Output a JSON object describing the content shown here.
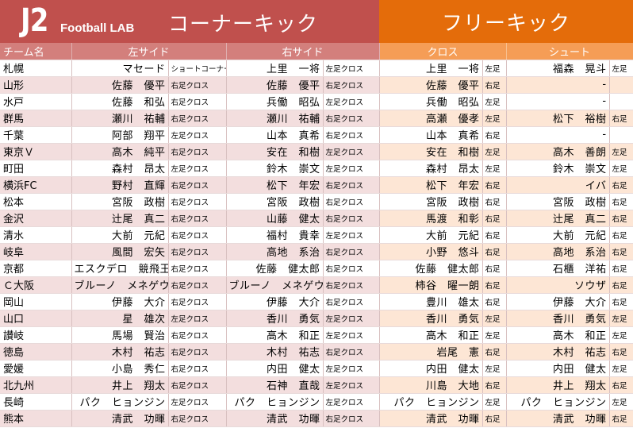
{
  "header": {
    "logo_j2": "J2",
    "logo_lab": "Football LAB",
    "corner_title": "コーナーキック",
    "freekick_title": "フリーキック"
  },
  "columns": {
    "team": "チーム名",
    "left_side": "左サイド",
    "right_side": "右サイド",
    "cross": "クロス",
    "shoot": "シュート"
  },
  "rows": [
    {
      "team": "札幌",
      "left_name": "マセード",
      "left_kick": "ショートコーナー",
      "right_name": "上里　一将",
      "right_kick": "左足クロス",
      "cross_name": "上里　一将",
      "cross_foot": "左足",
      "shoot_name": "福森　晃斗",
      "shoot_foot": "左足"
    },
    {
      "team": "山形",
      "left_name": "佐藤　優平",
      "left_kick": "右足クロス",
      "right_name": "佐藤　優平",
      "right_kick": "右足クロス",
      "cross_name": "佐藤　優平",
      "cross_foot": "右足",
      "shoot_name": "-",
      "shoot_foot": ""
    },
    {
      "team": "水戸",
      "left_name": "佐藤　和弘",
      "left_kick": "右足クロス",
      "right_name": "兵働　昭弘",
      "right_kick": "左足クロス",
      "cross_name": "兵働　昭弘",
      "cross_foot": "左足",
      "shoot_name": "-",
      "shoot_foot": ""
    },
    {
      "team": "群馬",
      "left_name": "瀬川　祐輔",
      "left_kick": "右足クロス",
      "right_name": "瀬川　祐輔",
      "right_kick": "右足クロス",
      "cross_name": "高瀬　優孝",
      "cross_foot": "左足",
      "shoot_name": "松下　裕樹",
      "shoot_foot": "右足"
    },
    {
      "team": "千葉",
      "left_name": "阿部　翔平",
      "left_kick": "左足クロス",
      "right_name": "山本　真希",
      "right_kick": "右足クロス",
      "cross_name": "山本　真希",
      "cross_foot": "右足",
      "shoot_name": "-",
      "shoot_foot": ""
    },
    {
      "team": "東京Ｖ",
      "left_name": "高木　純平",
      "left_kick": "右足クロス",
      "right_name": "安在　和樹",
      "right_kick": "左足クロス",
      "cross_name": "安在　和樹",
      "cross_foot": "左足",
      "shoot_name": "高木　善朗",
      "shoot_foot": "左足"
    },
    {
      "team": "町田",
      "left_name": "森村　昂太",
      "left_kick": "左足クロス",
      "right_name": "鈴木　崇文",
      "right_kick": "左足クロス",
      "cross_name": "森村　昂太",
      "cross_foot": "左足",
      "shoot_name": "鈴木　崇文",
      "shoot_foot": "左足"
    },
    {
      "team": "横浜FC",
      "left_name": "野村　直輝",
      "left_kick": "右足クロス",
      "right_name": "松下　年宏",
      "right_kick": "右足クロス",
      "cross_name": "松下　年宏",
      "cross_foot": "右足",
      "shoot_name": "イバ",
      "shoot_foot": "右足"
    },
    {
      "team": "松本",
      "left_name": "宮阪　政樹",
      "left_kick": "右足クロス",
      "right_name": "宮阪　政樹",
      "right_kick": "右足クロス",
      "cross_name": "宮阪　政樹",
      "cross_foot": "右足",
      "shoot_name": "宮阪　政樹",
      "shoot_foot": "右足"
    },
    {
      "team": "金沢",
      "left_name": "辻尾　真二",
      "left_kick": "右足クロス",
      "right_name": "山藤　健太",
      "right_kick": "右足クロス",
      "cross_name": "馬渡　和彰",
      "cross_foot": "右足",
      "shoot_name": "辻尾　真二",
      "shoot_foot": "右足"
    },
    {
      "team": "清水",
      "left_name": "大前　元紀",
      "left_kick": "右足クロス",
      "right_name": "福村　貴幸",
      "right_kick": "左足クロス",
      "cross_name": "大前　元紀",
      "cross_foot": "右足",
      "shoot_name": "大前　元紀",
      "shoot_foot": "右足"
    },
    {
      "team": "岐阜",
      "left_name": "風間　宏矢",
      "left_kick": "右足クロス",
      "right_name": "高地　系治",
      "right_kick": "右足クロス",
      "cross_name": "小野　悠斗",
      "cross_foot": "右足",
      "shoot_name": "高地　系治",
      "shoot_foot": "右足"
    },
    {
      "team": "京都",
      "left_name": "エスクデロ　競飛王",
      "left_kick": "右足クロス",
      "right_name": "佐藤　健太郎",
      "right_kick": "右足クロス",
      "cross_name": "佐藤　健太郎",
      "cross_foot": "右足",
      "shoot_name": "石櫃　洋祐",
      "shoot_foot": "右足"
    },
    {
      "team": "Ｃ大阪",
      "left_name": "ブルーノ　メネゲウ",
      "left_kick": "右足クロス",
      "right_name": "ブルーノ　メネゲウ",
      "right_kick": "右足クロス",
      "cross_name": "柿谷　曜一朗",
      "cross_foot": "右足",
      "shoot_name": "ソウザ",
      "shoot_foot": "右足"
    },
    {
      "team": "岡山",
      "left_name": "伊藤　大介",
      "left_kick": "右足クロス",
      "right_name": "伊藤　大介",
      "right_kick": "右足クロス",
      "cross_name": "豊川　雄太",
      "cross_foot": "右足",
      "shoot_name": "伊藤　大介",
      "shoot_foot": "右足"
    },
    {
      "team": "山口",
      "left_name": "星　雄次",
      "left_kick": "左足クロス",
      "right_name": "香川　勇気",
      "right_kick": "左足クロス",
      "cross_name": "香川　勇気",
      "cross_foot": "左足",
      "shoot_name": "香川　勇気",
      "shoot_foot": "左足"
    },
    {
      "team": "讃岐",
      "left_name": "馬場　賢治",
      "left_kick": "右足クロス",
      "right_name": "高木　和正",
      "right_kick": "左足クロス",
      "cross_name": "高木　和正",
      "cross_foot": "左足",
      "shoot_name": "高木　和正",
      "shoot_foot": "左足"
    },
    {
      "team": "徳島",
      "left_name": "木村　祐志",
      "left_kick": "右足クロス",
      "right_name": "木村　祐志",
      "right_kick": "右足クロス",
      "cross_name": "岩尾　憲",
      "cross_foot": "右足",
      "shoot_name": "木村　祐志",
      "shoot_foot": "右足"
    },
    {
      "team": "愛媛",
      "left_name": "小島　秀仁",
      "left_kick": "右足クロス",
      "right_name": "内田　健太",
      "right_kick": "左足クロス",
      "cross_name": "内田　健太",
      "cross_foot": "左足",
      "shoot_name": "内田　健太",
      "shoot_foot": "左足"
    },
    {
      "team": "北九州",
      "left_name": "井上　翔太",
      "left_kick": "右足クロス",
      "right_name": "石神　直哉",
      "right_kick": "左足クロス",
      "cross_name": "川島　大地",
      "cross_foot": "右足",
      "shoot_name": "井上　翔太",
      "shoot_foot": "右足"
    },
    {
      "team": "長崎",
      "left_name": "パク　ヒョンジン",
      "left_kick": "左足クロス",
      "right_name": "パク　ヒョンジン",
      "right_kick": "左足クロス",
      "cross_name": "パク　ヒョンジン",
      "cross_foot": "左足",
      "shoot_name": "パク　ヒョンジン",
      "shoot_foot": "左足"
    },
    {
      "team": "熊本",
      "left_name": "清武　功暉",
      "left_kick": "右足クロス",
      "right_name": "清武　功暉",
      "right_kick": "右足クロス",
      "cross_name": "清武　功暉",
      "cross_foot": "右足",
      "shoot_name": "清武　功暉",
      "shoot_foot": "右足"
    }
  ]
}
